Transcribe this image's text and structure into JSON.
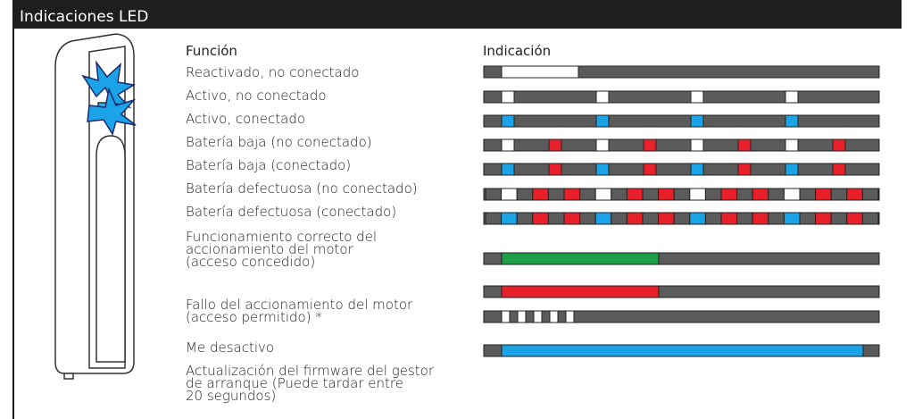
{
  "header": {
    "title": "Indicaciones LED"
  },
  "columns": {
    "function": "Función",
    "indication": "Indicación"
  },
  "rows": [
    {
      "lines": [
        "Reactivado, no conectado"
      ]
    },
    {
      "lines": [
        "Activo, no conectado"
      ]
    },
    {
      "lines": [
        "Activo, conectado"
      ]
    },
    {
      "lines": [
        "Batería baja (no conectado)"
      ]
    },
    {
      "lines": [
        "Batería baja (conectado)"
      ]
    },
    {
      "lines": [
        "Batería defectuosa (no conectado)"
      ]
    },
    {
      "lines": [
        "Batería defectuosa (conectado)"
      ]
    },
    {
      "lines": [
        "Funcionamiento correcto del",
        "accionamiento del motor",
        "(acceso concedido)"
      ]
    },
    {
      "lines": [
        "Fallo del accionamiento del motor",
        "(acceso permitido) *"
      ]
    },
    {
      "lines": [
        "Me desactivo"
      ]
    },
    {
      "lines": [
        "Actualización del firmware del gestor",
        "de arranque (Puede tardar entre",
        "20 segundos)"
      ]
    }
  ]
}
